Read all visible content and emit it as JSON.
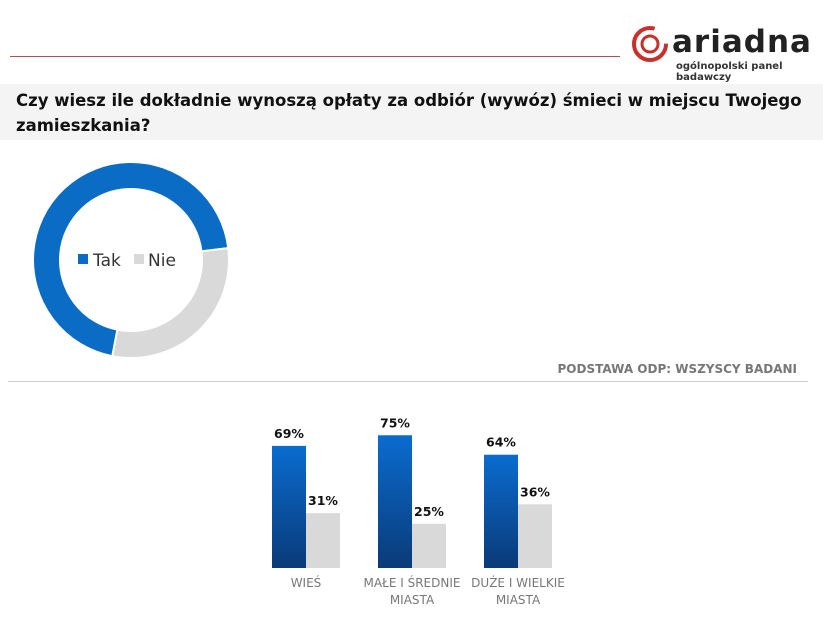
{
  "header": {
    "logo_text": "ariadna",
    "logo_subtitle": "ogólnopolski panel badawczy",
    "brand_color": "#c8312b"
  },
  "title": "Czy wiesz ile dokładnie wynoszą opłaty za odbiór  (wywóz) śmieci w miejscu Twojego zamieszkania?",
  "base_note": "PODSTAWA ODP: WSZYSCY BADANI",
  "chart_data": [
    {
      "type": "pie",
      "variant": "donut",
      "categories": [
        "Tak",
        "Nie"
      ],
      "values": [
        70,
        30
      ],
      "labels": [
        "70%",
        "30%"
      ],
      "colors": [
        "#0a6cc4",
        "#d9d9d9"
      ],
      "legend": "center"
    },
    {
      "type": "bar",
      "categories": [
        "WIEŚ",
        "MAŁE I ŚREDNIE MIASTA",
        "DUŻE I WIELKIE MIASTA"
      ],
      "series": [
        {
          "values": [
            69,
            75,
            64
          ],
          "labels": [
            "69%",
            "75%",
            "64%"
          ],
          "color": "#0a6cc4"
        },
        {
          "values": [
            31,
            25,
            36
          ],
          "labels": [
            "31%",
            "25%",
            "36%"
          ],
          "color": "#d9d9d9"
        }
      ],
      "ylim": [
        0,
        100
      ]
    }
  ]
}
